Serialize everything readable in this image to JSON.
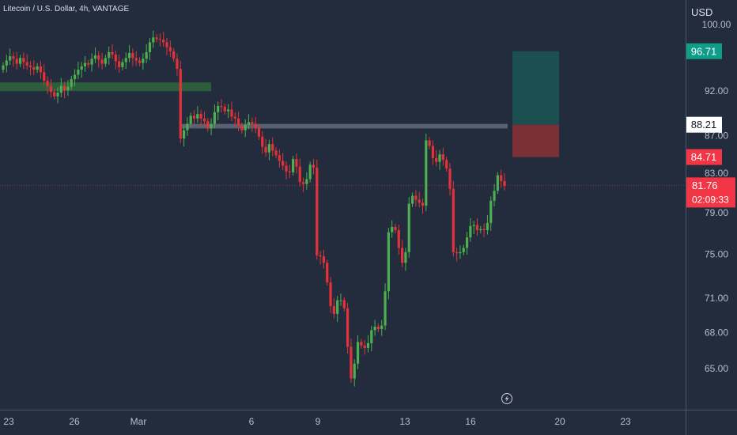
{
  "header": {
    "title": "Litecoin / U.S. Dollar, 4h, VANTAGE"
  },
  "price_axis": {
    "currency": "USD",
    "ticks": [
      "100.00",
      "92.00",
      "87.00",
      "83.00",
      "79.00",
      "75.00",
      "71.00",
      "68.00",
      "65.00"
    ],
    "tag_tp": "96.71",
    "tag_entry": "88.21",
    "tag_sl": "84.71",
    "tag_last": "81.76",
    "tag_countdown": "02:09:33"
  },
  "time_axis": {
    "labels": [
      "23",
      "26",
      "Mar",
      "6",
      "9",
      "13",
      "16",
      "20",
      "23"
    ]
  },
  "colors": {
    "bg": "#232c3c",
    "up": "#4caf50",
    "down": "#e5323a",
    "tp": "#0f9d8a",
    "sl": "#f23645"
  },
  "icons": {
    "replay": "lightning-icon"
  },
  "chart_data": {
    "type": "candlestick",
    "title": "Litecoin / U.S. Dollar, 4h, VANTAGE",
    "ylabel": "USD",
    "xlabel": "",
    "ylim": [
      62,
      102
    ],
    "y_scale": "log",
    "x_tick_labels": [
      "23",
      "26",
      "Mar",
      "6",
      "9",
      "13",
      "16",
      "20",
      "23"
    ],
    "grid": false,
    "closes": [
      95.0,
      95.6,
      96.1,
      95.8,
      95.2,
      95.9,
      95.4,
      95.0,
      94.8,
      94.5,
      94.9,
      94.2,
      93.2,
      92.6,
      91.9,
      91.4,
      91.8,
      92.6,
      92.1,
      92.5,
      93.4,
      93.9,
      94.5,
      94.9,
      95.3,
      95.1,
      95.8,
      96.2,
      95.7,
      95.2,
      95.9,
      96.6,
      96.3,
      95.5,
      94.8,
      95.4,
      95.9,
      96.5,
      95.9,
      95.6,
      95.3,
      95.8,
      96.6,
      97.8,
      98.4,
      98.2,
      98.1,
      97.8,
      97.2,
      96.7,
      95.8,
      94.6,
      86.7,
      87.6,
      88.3,
      89.2,
      88.9,
      89.4,
      88.9,
      88.6,
      87.8,
      88.3,
      89.6,
      90.3,
      90.2,
      89.7,
      89.9,
      89.1,
      88.9,
      88.1,
      87.6,
      88.2,
      88.5,
      88.3,
      87.9,
      86.9,
      85.8,
      85.2,
      86.1,
      85.4,
      84.9,
      84.3,
      83.8,
      83.2,
      83.1,
      84.5,
      83.7,
      82.1,
      81.9,
      82.4,
      83.9,
      83.6,
      74.9,
      74.8,
      74.2,
      72.4,
      70.3,
      69.6,
      70.8,
      70.8,
      70.1,
      66.8,
      64.2,
      65.4,
      67.2,
      66.9,
      66.7,
      67.1,
      68.2,
      68.5,
      68.3,
      68.6,
      71.6,
      77.1,
      77.6,
      77.3,
      75.6,
      74.2,
      75.2,
      79.9,
      80.7,
      80.3,
      80.0,
      79.7,
      86.5,
      85.9,
      84.6,
      84.2,
      85.0,
      84.4,
      83.5,
      81.4,
      75.2,
      75.1,
      75.2,
      75.6,
      76.6,
      77.7,
      77.8,
      77.3,
      77.4,
      77.3,
      78.0,
      80.2,
      81.2,
      82.8,
      82.2,
      81.7
    ],
    "opens_first": 94.5,
    "zones": [
      {
        "label": "support-resistance zone",
        "low": 92.0,
        "high": 93.0
      },
      {
        "label": "entry zone",
        "low": 87.8,
        "high": 88.3
      }
    ],
    "position": {
      "take_profit": 96.71,
      "entry": 88.21,
      "stop_loss": 84.71
    },
    "last_price": 81.76,
    "countdown": "02:09:33"
  }
}
